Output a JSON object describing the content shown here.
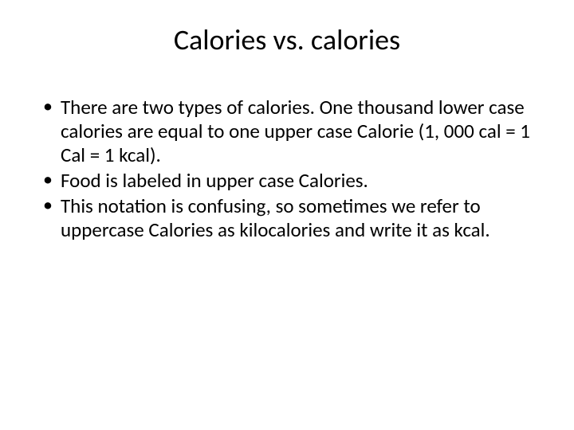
{
  "title": "Calories vs. calories",
  "bullets": [
    "There are two types of calories. One thousand lower case calories are equal to one upper case Calorie (1, 000 cal = 1 Cal = 1 kcal).",
    "Food is labeled in upper case Calories.",
    "This notation is confusing, so sometimes we refer to uppercase Calories as kilocalories and write it as kcal."
  ],
  "colors": {
    "background": "#ffffff",
    "text": "#000000"
  },
  "typography": {
    "title_fontsize": 36,
    "bullet_fontsize": 25,
    "font_family": "Calibri"
  }
}
